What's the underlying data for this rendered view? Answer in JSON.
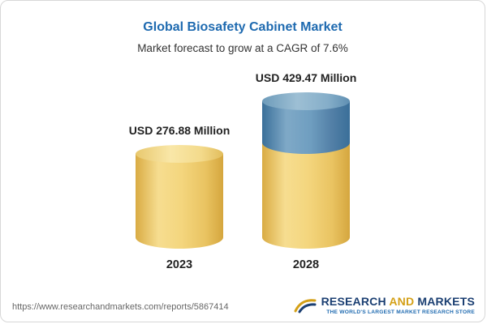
{
  "header": {
    "title": "Global Biosafety Cabinet Market",
    "subtitle": "Market forecast to grow at a CAGR of 7.6%"
  },
  "chart_data": {
    "type": "bar",
    "style": "3d-cylinder",
    "title": "Global Biosafety Cabinet Market",
    "subtitle": "Market forecast to grow at a CAGR of 7.6%",
    "categories": [
      "2023",
      "2028"
    ],
    "values": [
      276.88,
      429.47
    ],
    "unit": "USD Million",
    "value_labels": [
      "USD 276.88 Million",
      "USD 429.47 Million"
    ],
    "cagr": "7.6%",
    "ylim": [
      0,
      429.47
    ],
    "bar_colors": [
      "#f0c96a",
      "#5b8db4"
    ],
    "bar_2028_segments": [
      {
        "color": "#f0c96a",
        "value": 276.88
      },
      {
        "color": "#5b8db4",
        "value": 152.59
      }
    ],
    "legend": "none",
    "grid": false
  },
  "footer": {
    "url": "https://www.researchandmarkets.com/reports/5867414",
    "logo": {
      "part1": "RESEARCH",
      "part2": "AND",
      "part3": "MARKETS",
      "tagline": "THE WORLD'S LARGEST MARKET RESEARCH STORE"
    }
  },
  "colors": {
    "title_blue": "#1e6ab0",
    "bar_gold": "#f0c96a",
    "bar_blue": "#5b8db4",
    "logo_navy": "#1b3f72",
    "logo_gold": "#d4a017",
    "url_gray": "#666666"
  }
}
